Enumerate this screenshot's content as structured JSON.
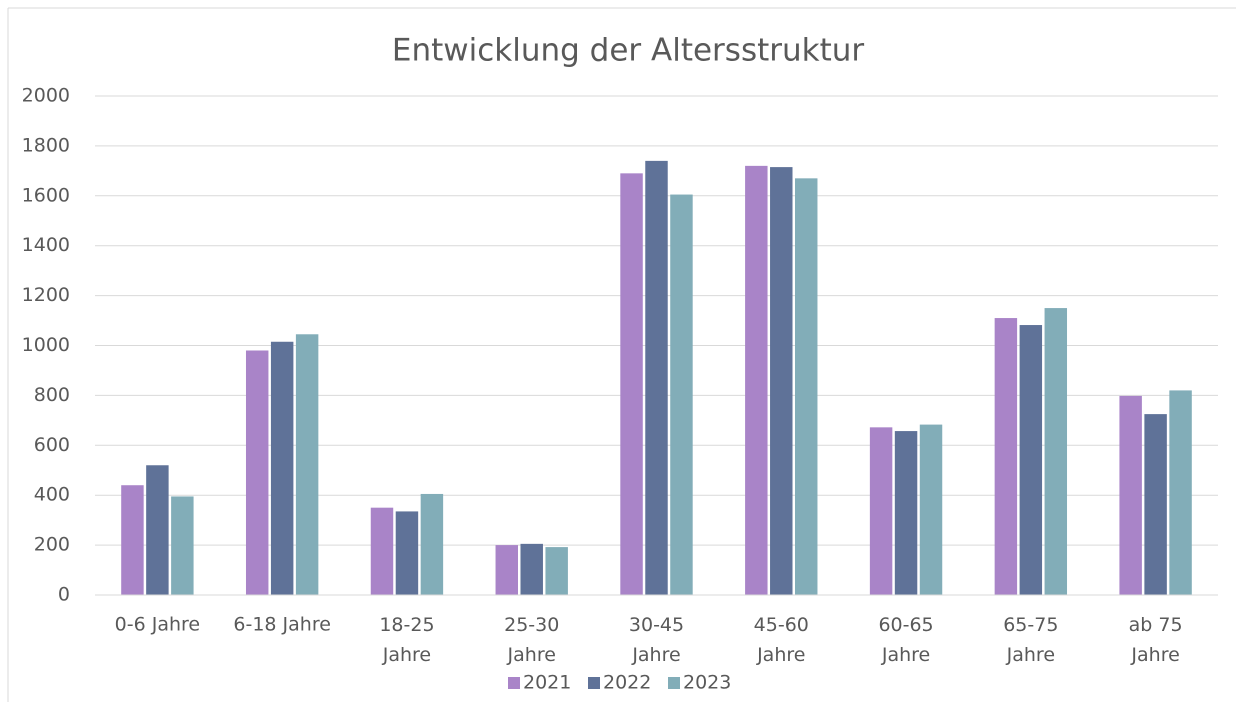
{
  "chart_data": {
    "type": "bar",
    "title": "Entwicklung der Altersstruktur",
    "categories": [
      "0-6 Jahre",
      "6-18 Jahre",
      "18-25 Jahre",
      "25-30 Jahre",
      "30-45 Jahre",
      "45-60 Jahre",
      "60-65 Jahre",
      "65-75 Jahre",
      "ab 75 Jahre"
    ],
    "series": [
      {
        "name": "2021",
        "color": "#a984c8",
        "values": [
          440,
          980,
          350,
          200,
          1690,
          1720,
          672,
          1110,
          798
        ]
      },
      {
        "name": "2022",
        "color": "#5f7298",
        "values": [
          520,
          1015,
          335,
          205,
          1740,
          1715,
          657,
          1082,
          725
        ]
      },
      {
        "name": "2023",
        "color": "#82adb8",
        "values": [
          395,
          1045,
          405,
          192,
          1605,
          1670,
          683,
          1150,
          820
        ]
      }
    ],
    "ylim": [
      0,
      2000
    ],
    "yticks": [
      0,
      200,
      400,
      600,
      800,
      1000,
      1200,
      1400,
      1600,
      1800,
      2000
    ],
    "grid": true,
    "legend": "bottom"
  }
}
